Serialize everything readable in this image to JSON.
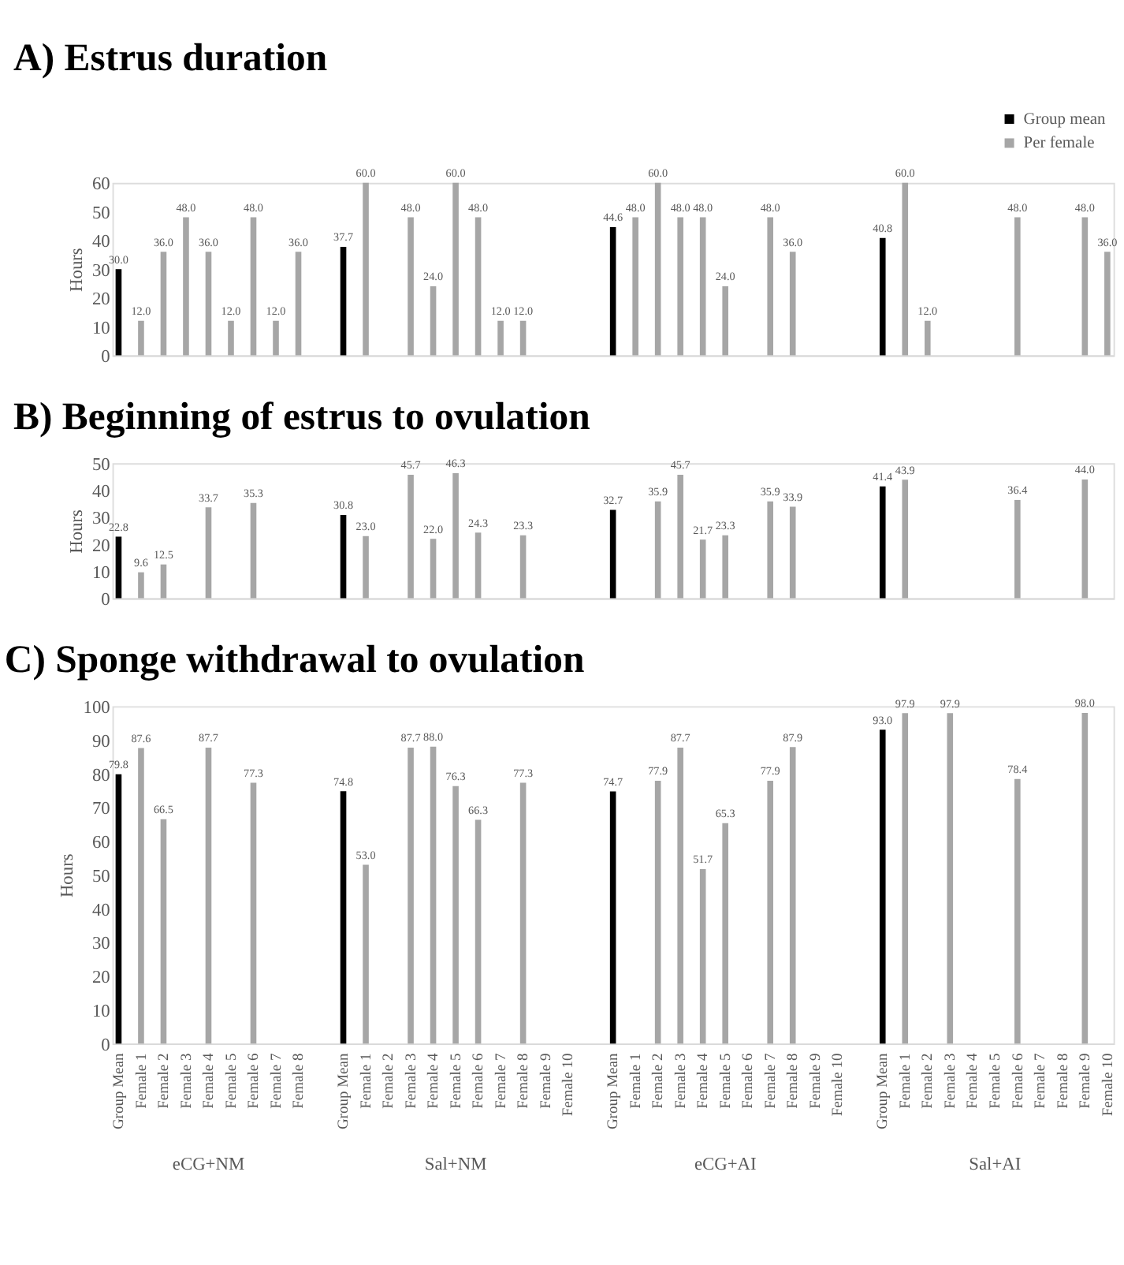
{
  "chart_data": [
    {
      "type": "bar",
      "title": "A) Estrus duration",
      "ylabel": "Hours",
      "legend": "top right",
      "tick_labels": "y",
      "data_labels": true,
      "grid": false,
      "categories": [
        null,
        null,
        null,
        null,
        null,
        null,
        null,
        null,
        null,
        null,
        null,
        null,
        null,
        null,
        null,
        null,
        null,
        null,
        null,
        null,
        null,
        null,
        null,
        null,
        null,
        null,
        null,
        null,
        null,
        null,
        null,
        null,
        null,
        null,
        null,
        null,
        null,
        null,
        null,
        null,
        null,
        null,
        null,
        null,
        null
      ],
      "ylim": [
        0,
        60
      ],
      "yticks": [
        0,
        10,
        20,
        30,
        40,
        50,
        60
      ],
      "series": [
        {
          "name": "Group mean",
          "color": "#000000",
          "values": [
            30.0,
            null,
            null,
            null,
            null,
            null,
            null,
            null,
            null,
            null,
            37.7,
            null,
            null,
            null,
            null,
            null,
            null,
            null,
            null,
            null,
            null,
            null,
            44.6,
            null,
            null,
            null,
            null,
            null,
            null,
            null,
            null,
            null,
            null,
            null,
            40.8,
            null,
            null,
            null,
            null,
            null,
            null,
            null,
            null,
            null,
            null
          ],
          "value_labels": [
            "30.0",
            null,
            null,
            null,
            null,
            null,
            null,
            null,
            null,
            null,
            "37.7",
            null,
            null,
            null,
            null,
            null,
            null,
            null,
            null,
            null,
            null,
            null,
            "44.6",
            null,
            null,
            null,
            null,
            null,
            null,
            null,
            null,
            null,
            null,
            null,
            "40.8",
            null,
            null,
            null,
            null,
            null,
            null,
            null,
            null,
            null,
            null
          ]
        },
        {
          "name": "Per female",
          "color": "#a6a6a6",
          "values": [
            null,
            12.0,
            36.0,
            48.0,
            36.0,
            12.0,
            48.0,
            12.0,
            36.0,
            null,
            null,
            60.0,
            null,
            48.0,
            24.0,
            60.0,
            48.0,
            12.0,
            12.0,
            null,
            null,
            null,
            null,
            48.0,
            60.0,
            48.0,
            48.0,
            24.0,
            null,
            48.0,
            36.0,
            null,
            null,
            null,
            null,
            60.0,
            12.0,
            null,
            null,
            null,
            48.0,
            null,
            null,
            48.0,
            36.0
          ],
          "value_labels": [
            null,
            "12.0",
            "36.0",
            "48.0",
            "36.0",
            "12.0",
            "48.0",
            "12.0",
            "36.0",
            null,
            null,
            "60.0",
            null,
            "48.0",
            "24.0",
            "60.0",
            "48.0",
            "12.0",
            "12.0",
            null,
            null,
            null,
            null,
            "48.0",
            "60.0",
            "48.0",
            "48.0",
            "24.0",
            null,
            "48.0",
            "36.0",
            null,
            null,
            null,
            null,
            "60.0",
            "12.0",
            null,
            null,
            null,
            "48.0",
            null,
            null,
            "48.0",
            "36.0"
          ]
        }
      ]
    },
    {
      "type": "bar",
      "title": "B) Beginning of estrus to ovulation",
      "ylabel": "Hours",
      "tick_labels": "y",
      "data_labels": true,
      "grid": false,
      "categories": [
        null,
        null,
        null,
        null,
        null,
        null,
        null,
        null,
        null,
        null,
        null,
        null,
        null,
        null,
        null,
        null,
        null,
        null,
        null,
        null,
        null,
        null,
        null,
        null,
        null,
        null,
        null,
        null,
        null,
        null,
        null,
        null,
        null,
        null,
        null,
        null,
        null,
        null,
        null,
        null,
        null,
        null,
        null,
        null,
        null
      ],
      "ylim": [
        0,
        50
      ],
      "yticks": [
        0,
        10,
        20,
        30,
        40,
        50
      ],
      "series": [
        {
          "color": "#000000",
          "values": [
            22.8,
            null,
            null,
            null,
            null,
            null,
            null,
            null,
            null,
            null,
            30.8,
            null,
            null,
            null,
            null,
            null,
            null,
            null,
            null,
            null,
            null,
            null,
            32.7,
            null,
            null,
            null,
            null,
            null,
            null,
            null,
            null,
            null,
            null,
            null,
            41.4,
            null,
            null,
            null,
            null,
            null,
            null,
            null,
            null,
            null,
            null
          ],
          "value_labels": [
            "22.8",
            null,
            null,
            null,
            null,
            null,
            null,
            null,
            null,
            null,
            "30.8",
            null,
            null,
            null,
            null,
            null,
            null,
            null,
            null,
            null,
            null,
            null,
            "32.7",
            null,
            null,
            null,
            null,
            null,
            null,
            null,
            null,
            null,
            null,
            null,
            "41.4",
            null,
            null,
            null,
            null,
            null,
            null,
            null,
            null,
            null,
            null
          ]
        },
        {
          "color": "#a6a6a6",
          "values": [
            null,
            9.6,
            12.5,
            null,
            33.7,
            null,
            35.3,
            null,
            null,
            null,
            null,
            23.0,
            null,
            45.7,
            22.0,
            46.3,
            24.3,
            null,
            23.3,
            null,
            null,
            null,
            null,
            null,
            35.9,
            45.7,
            21.7,
            23.3,
            null,
            35.9,
            33.9,
            null,
            null,
            null,
            null,
            43.9,
            null,
            null,
            null,
            null,
            36.4,
            null,
            null,
            44.0,
            null
          ],
          "value_labels": [
            null,
            "9.6",
            "12.5",
            null,
            "33.7",
            null,
            "35.3",
            null,
            null,
            null,
            null,
            "23.0",
            null,
            "45.7",
            "22.0",
            "46.3",
            "24.3",
            null,
            "23.3",
            null,
            null,
            null,
            null,
            null,
            "35.9",
            "45.7",
            "21.7",
            "23.3",
            null,
            "35.9",
            "33.9",
            null,
            null,
            null,
            null,
            "43.9",
            null,
            null,
            null,
            null,
            "36.4",
            null,
            null,
            "44.0",
            null
          ]
        }
      ]
    },
    {
      "type": "bar",
      "title": "C) Sponge withdrawal to ovulation",
      "ylabel": "Hours",
      "data_labels": true,
      "grid": false,
      "annotations": [
        "eCG+NM",
        "Sal+NM",
        "eCG+AI",
        "Sal+AI"
      ],
      "categories": [
        "Group Mean",
        "Female 1",
        "Female 2",
        "Female 3",
        "Female 4",
        "Female 5",
        "Female 6",
        "Female 7",
        "Female 8",
        null,
        "Group Mean",
        "Female 1",
        "Female 2",
        "Female 3",
        "Female 4",
        "Female 5",
        "Female 6",
        "Female 7",
        "Female 8",
        "Female 9",
        "Female 10",
        null,
        "Group Mean",
        "Female 1",
        "Female 2",
        "Female 3",
        "Female 4",
        "Female 5",
        "Female 6",
        "Female 7",
        "Female 8",
        "Female 9",
        "Female 10",
        null,
        "Group Mean",
        "Female 1",
        "Female 2",
        "Female 3",
        "Female 4",
        "Female 5",
        "Female 6",
        "Female 7",
        "Female 8",
        "Female 9",
        "Female 10"
      ],
      "ylim": [
        0,
        100
      ],
      "yticks": [
        0,
        10,
        20,
        30,
        40,
        50,
        60,
        70,
        80,
        90,
        100
      ],
      "series": [
        {
          "color": "#000000",
          "values": [
            79.8,
            null,
            null,
            null,
            null,
            null,
            null,
            null,
            null,
            null,
            74.8,
            null,
            null,
            null,
            null,
            null,
            null,
            null,
            null,
            null,
            null,
            null,
            74.7,
            null,
            null,
            null,
            null,
            null,
            null,
            null,
            null,
            null,
            null,
            null,
            93.0,
            null,
            null,
            null,
            null,
            null,
            null,
            null,
            null,
            null,
            null
          ],
          "value_labels": [
            "79.8",
            null,
            null,
            null,
            null,
            null,
            null,
            null,
            null,
            null,
            "74.8",
            null,
            null,
            null,
            null,
            null,
            null,
            null,
            null,
            null,
            null,
            null,
            "74.7",
            null,
            null,
            null,
            null,
            null,
            null,
            null,
            null,
            null,
            null,
            null,
            "93.0",
            null,
            null,
            null,
            null,
            null,
            null,
            null,
            null,
            null,
            null
          ]
        },
        {
          "color": "#a6a6a6",
          "values": [
            null,
            87.6,
            66.5,
            null,
            87.7,
            null,
            77.3,
            null,
            null,
            null,
            null,
            53.0,
            null,
            87.7,
            88.0,
            76.3,
            66.3,
            null,
            77.3,
            null,
            null,
            null,
            null,
            null,
            77.9,
            87.7,
            51.7,
            65.3,
            null,
            77.9,
            87.9,
            null,
            null,
            null,
            null,
            97.9,
            null,
            97.9,
            null,
            null,
            78.4,
            null,
            null,
            98.0,
            null
          ],
          "value_labels": [
            null,
            "87.6",
            "66.5",
            null,
            "87.7",
            null,
            "77.3",
            null,
            null,
            null,
            null,
            "53.0",
            null,
            "87.7",
            "88.0",
            "76.3",
            "66.3",
            null,
            "77.3",
            null,
            null,
            null,
            null,
            null,
            "77.9",
            "87.7",
            "51.7",
            "65.3",
            null,
            "77.9",
            "87.9",
            null,
            null,
            null,
            null,
            "97.9",
            null,
            "97.9",
            null,
            null,
            "78.4",
            null,
            null,
            "98.0",
            null
          ]
        }
      ]
    }
  ]
}
